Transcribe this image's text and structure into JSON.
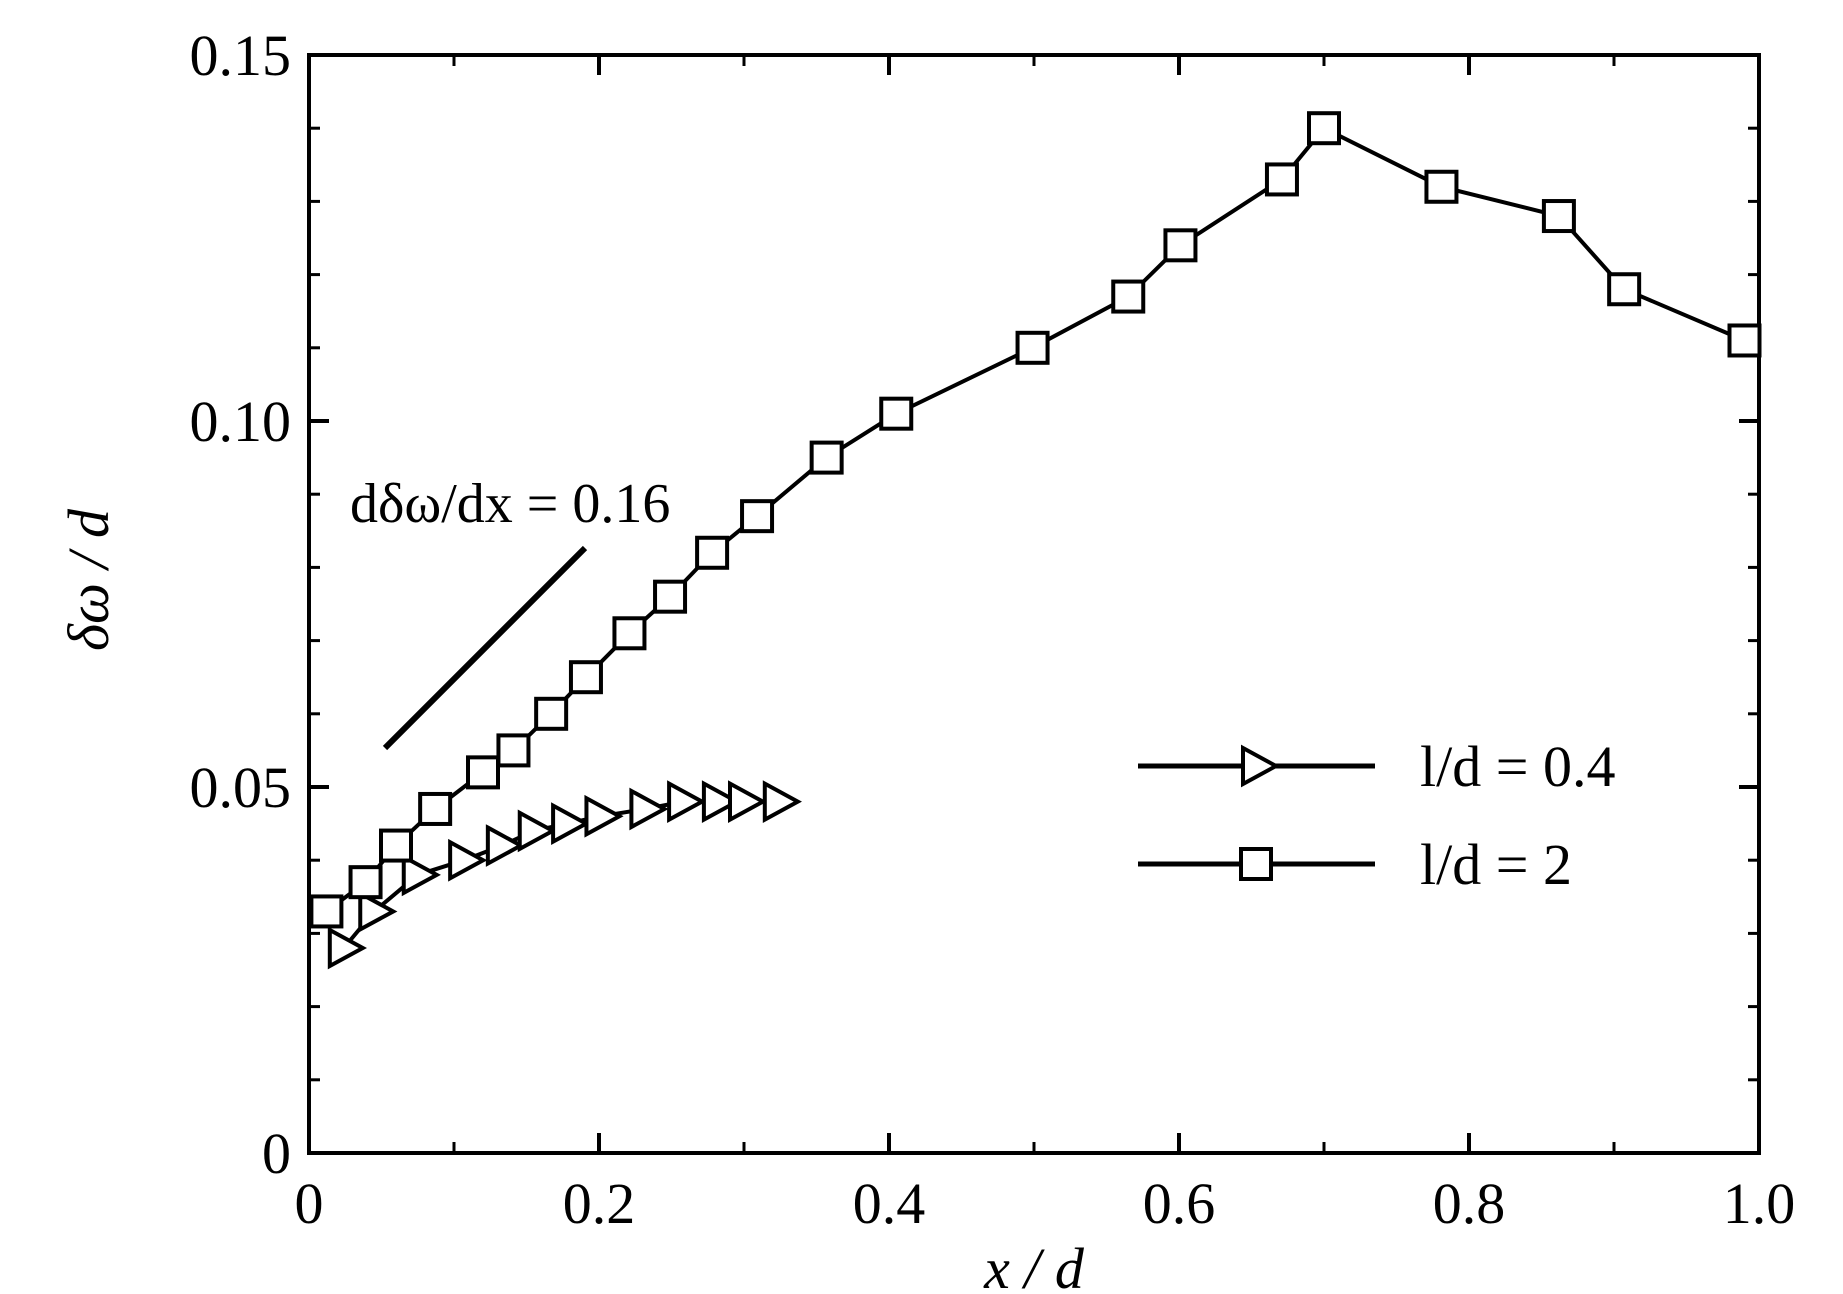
{
  "chart_data": {
    "type": "line",
    "xlabel": "x / d",
    "ylabel": "δω / d",
    "xlim": [
      0,
      1.0
    ],
    "ylim": [
      0,
      0.15
    ],
    "x_ticks": [
      0,
      0.2,
      0.4,
      0.6,
      0.8,
      1.0
    ],
    "x_tick_labels": [
      "0",
      "0.2",
      "0.4",
      "0.6",
      "0.8",
      "1.0"
    ],
    "y_ticks": [
      0,
      0.05,
      0.1,
      0.15
    ],
    "y_tick_labels": [
      "0",
      "0.05",
      "0.10",
      "0.15"
    ],
    "grid": false,
    "legend_position": "right-middle",
    "series": [
      {
        "name": "l/d = 0.4",
        "marker": "triangle-right",
        "x": [
          0.024,
          0.045,
          0.075,
          0.107,
          0.133,
          0.155,
          0.178,
          0.201,
          0.232,
          0.258,
          0.282,
          0.3,
          0.324
        ],
        "y": [
          0.028,
          0.033,
          0.038,
          0.04,
          0.042,
          0.044,
          0.045,
          0.046,
          0.047,
          0.048,
          0.048,
          0.048,
          0.048
        ]
      },
      {
        "name": "l/d = 2",
        "marker": "square",
        "x": [
          0.012,
          0.039,
          0.06,
          0.087,
          0.12,
          0.141,
          0.167,
          0.191,
          0.221,
          0.249,
          0.278,
          0.309,
          0.357,
          0.405,
          0.499,
          0.565,
          0.601,
          0.671,
          0.7,
          0.781,
          0.862,
          0.907,
          0.99
        ],
        "y": [
          0.033,
          0.037,
          0.042,
          0.047,
          0.052,
          0.055,
          0.06,
          0.065,
          0.071,
          0.076,
          0.082,
          0.087,
          0.095,
          0.101,
          0.11,
          0.117,
          0.124,
          0.133,
          0.14,
          0.132,
          0.128,
          0.118,
          0.111
        ]
      }
    ],
    "annotation": {
      "text": "dδω/dx = 0.16"
    }
  }
}
